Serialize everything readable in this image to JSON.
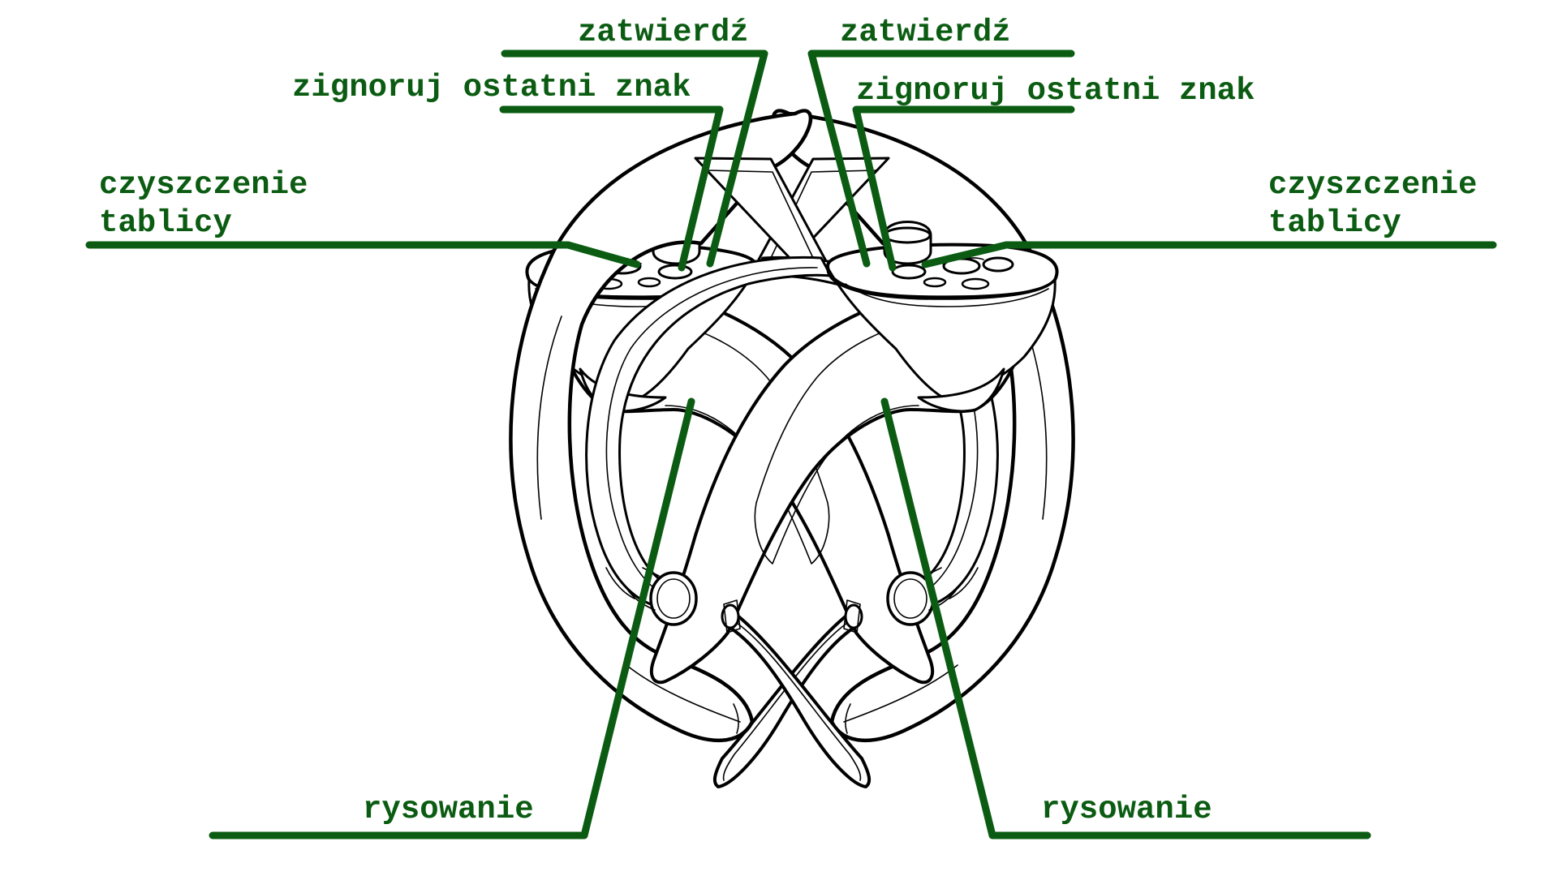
{
  "labels": {
    "confirm": "zatwierdź",
    "ignore_last_char": "zignoruj ostatni znak",
    "clear_board_line1": "czyszczenie",
    "clear_board_line2": "tablicy",
    "draw": "rysowanie"
  },
  "colors": {
    "label": "#0b5c12",
    "outline": "#000000",
    "background": "#ffffff"
  },
  "icons": [
    "left-vr-controller-icon",
    "right-vr-controller-icon"
  ]
}
